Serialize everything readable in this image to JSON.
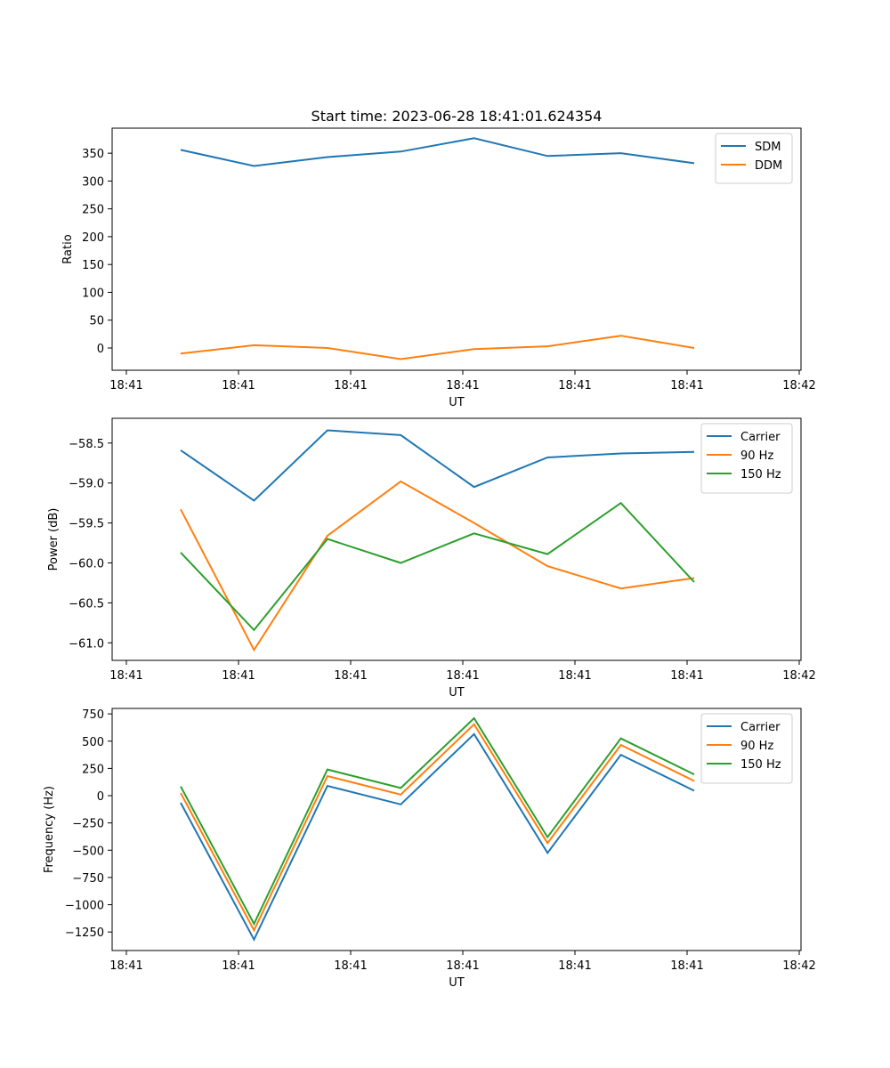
{
  "figure": {
    "title": "Start time: 2023-06-28 18:41:01.624354"
  },
  "chart_data": [
    {
      "type": "line",
      "xlabel": "UT",
      "ylabel": "Ratio",
      "x_ticks": [
        "18:41",
        "18:41",
        "18:41",
        "18:41",
        "18:41",
        "18:41",
        "18:42"
      ],
      "y_ticks": [
        "0",
        "50",
        "100",
        "150",
        "200",
        "250",
        "300",
        "350"
      ],
      "ylim": [
        -40,
        395
      ],
      "legend_position": "top-right",
      "grid": false,
      "series": [
        {
          "name": "SDM",
          "color": "#1f77b4",
          "values": [
            356,
            327,
            343,
            353,
            377,
            345,
            350,
            332
          ]
        },
        {
          "name": "DDM",
          "color": "#ff7f0e",
          "values": [
            -10,
            5,
            0,
            -20,
            -2,
            3,
            22,
            0
          ]
        }
      ]
    },
    {
      "type": "line",
      "xlabel": "UT",
      "ylabel": "Power (dB)",
      "x_ticks": [
        "18:41",
        "18:41",
        "18:41",
        "18:41",
        "18:41",
        "18:41",
        "18:42"
      ],
      "y_ticks": [
        "−58.5",
        "−59.0",
        "−59.5",
        "−60.0",
        "−60.5",
        "−61.0"
      ],
      "ylim": [
        -61.22,
        -58.19
      ],
      "legend_position": "top-right",
      "grid": false,
      "series": [
        {
          "name": "Carrier",
          "color": "#1f77b4",
          "values": [
            -58.59,
            -59.22,
            -58.34,
            -58.4,
            -59.05,
            -58.68,
            -58.63,
            -58.61
          ]
        },
        {
          "name": "90 Hz",
          "color": "#ff7f0e",
          "values": [
            -59.33,
            -61.09,
            -59.66,
            -58.98,
            -59.5,
            -60.04,
            -60.32,
            -60.19
          ]
        },
        {
          "name": "150 Hz",
          "color": "#2ca02c",
          "values": [
            -59.87,
            -60.84,
            -59.7,
            -60.0,
            -59.63,
            -59.89,
            -59.25,
            -60.24
          ]
        }
      ]
    },
    {
      "type": "line",
      "xlabel": "UT",
      "ylabel": "Frequency (Hz)",
      "x_ticks": [
        "18:41",
        "18:41",
        "18:41",
        "18:41",
        "18:41",
        "18:41",
        "18:42"
      ],
      "y_ticks": [
        "750",
        "500",
        "250",
        "0",
        "−250",
        "−500",
        "−750",
        "−1000",
        "−1250"
      ],
      "ylim": [
        -1420,
        800
      ],
      "legend_position": "top-right",
      "grid": false,
      "series": [
        {
          "name": "Carrier",
          "color": "#1f77b4",
          "values": [
            -65,
            -1320,
            90,
            -80,
            565,
            -525,
            375,
            45
          ]
        },
        {
          "name": "90 Hz",
          "color": "#ff7f0e",
          "values": [
            25,
            -1235,
            180,
            10,
            655,
            -435,
            465,
            135
          ]
        },
        {
          "name": "150 Hz",
          "color": "#2ca02c",
          "values": [
            85,
            -1175,
            240,
            70,
            710,
            -380,
            525,
            195
          ]
        }
      ]
    }
  ]
}
